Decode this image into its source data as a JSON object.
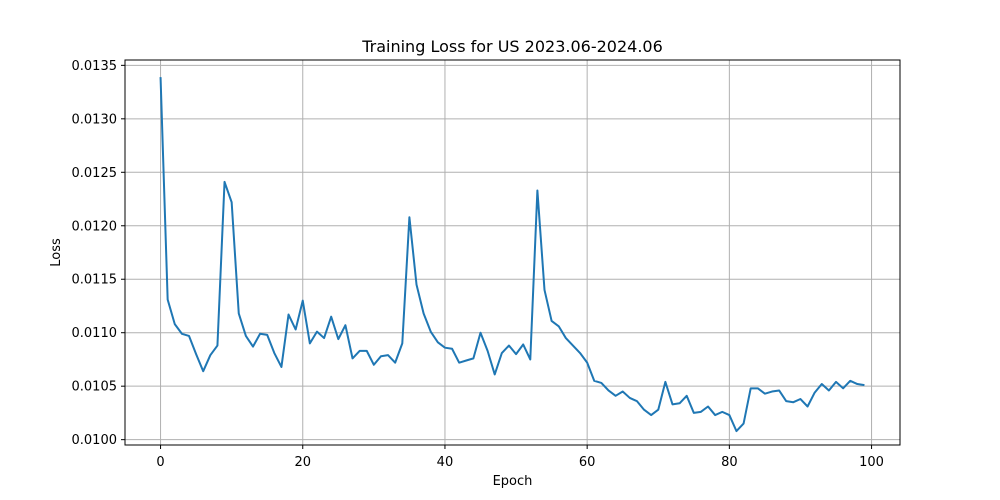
{
  "chart_data": {
    "type": "line",
    "title": "Training Loss for US 2023.06-2024.06",
    "xlabel": "Epoch",
    "ylabel": "Loss",
    "xlim": [
      -5,
      104
    ],
    "ylim": [
      0.00995,
      0.01355
    ],
    "x_ticks": [
      0,
      20,
      40,
      60,
      80,
      100
    ],
    "x_tick_labels": [
      "0",
      "20",
      "40",
      "60",
      "80",
      "100"
    ],
    "y_ticks": [
      0.01,
      0.0105,
      0.011,
      0.0115,
      0.012,
      0.0125,
      0.013,
      0.0135
    ],
    "y_tick_labels": [
      "0.0100",
      "0.0105",
      "0.0110",
      "0.0115",
      "0.0120",
      "0.0125",
      "0.0130",
      "0.0135"
    ],
    "grid": true,
    "color": "#1f77b4",
    "series": [
      {
        "x": [
          0,
          1,
          2,
          3,
          4,
          5,
          6,
          7,
          8,
          9,
          10,
          11,
          12,
          13,
          14,
          15,
          16,
          17,
          18,
          19,
          20,
          21,
          22,
          23,
          24,
          25,
          26,
          27,
          28,
          29,
          30,
          31,
          32,
          33,
          34,
          35,
          36,
          37,
          38,
          39,
          40,
          41,
          42,
          43,
          44,
          45,
          46,
          47,
          48,
          49,
          50,
          51,
          52,
          53,
          54,
          55,
          56,
          57,
          58,
          59,
          60,
          61,
          62,
          63,
          64,
          65,
          66,
          67,
          68,
          69,
          70,
          71,
          72,
          73,
          74,
          75,
          76,
          77,
          78,
          79,
          80,
          81,
          82,
          83,
          84,
          85,
          86,
          87,
          88,
          89,
          90,
          91,
          92,
          93,
          94,
          95,
          96,
          97,
          98,
          99
        ],
        "values": [
          0.01339,
          0.01131,
          0.01108,
          0.01099,
          0.01097,
          0.0108,
          0.01064,
          0.01079,
          0.01088,
          0.01241,
          0.01222,
          0.01118,
          0.01097,
          0.01087,
          0.01099,
          0.01098,
          0.01081,
          0.01068,
          0.01117,
          0.01103,
          0.0113,
          0.0109,
          0.01101,
          0.01095,
          0.01115,
          0.01094,
          0.01107,
          0.01076,
          0.01083,
          0.01083,
          0.0107,
          0.01078,
          0.01079,
          0.01072,
          0.0109,
          0.01208,
          0.01145,
          0.01118,
          0.01101,
          0.01091,
          0.01086,
          0.01085,
          0.01072,
          0.01074,
          0.01076,
          0.011,
          0.01083,
          0.01061,
          0.01081,
          0.01088,
          0.0108,
          0.01089,
          0.01075,
          0.01233,
          0.0114,
          0.01111,
          0.01106,
          0.01095,
          0.01088,
          0.01081,
          0.01072,
          0.01055,
          0.01053,
          0.01046,
          0.01041,
          0.01045,
          0.01039,
          0.01036,
          0.01028,
          0.01023,
          0.01028,
          0.01054,
          0.01033,
          0.01034,
          0.01041,
          0.01025,
          0.01026,
          0.01031,
          0.01023,
          0.01026,
          0.01023,
          0.01008,
          0.01015,
          0.01048,
          0.01048,
          0.01043,
          0.01045,
          0.01046,
          0.01036,
          0.01035,
          0.01038,
          0.01031,
          0.01044,
          0.01052,
          0.01046,
          0.01054,
          0.01048,
          0.01055,
          0.01052,
          0.01051
        ]
      }
    ]
  }
}
